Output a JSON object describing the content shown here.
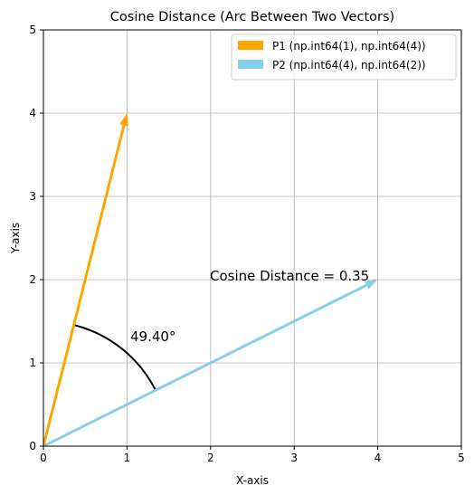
{
  "chart_data": {
    "type": "line",
    "title": "Cosine Distance (Arc Between Two Vectors)",
    "xlabel": "X-axis",
    "ylabel": "Y-axis",
    "xlim": [
      0,
      5
    ],
    "ylim": [
      0,
      5
    ],
    "xticks": [
      "0",
      "1",
      "2",
      "3",
      "4",
      "5"
    ],
    "yticks": [
      "0",
      "1",
      "2",
      "3",
      "4",
      "5"
    ],
    "grid": true,
    "legend_position": "top-right",
    "series": [
      {
        "name": "P1 (np.int64(1), np.int64(4))",
        "x": [
          0,
          1
        ],
        "y": [
          0,
          4
        ],
        "color": "#ffa500"
      },
      {
        "name": "P2 (np.int64(4), np.int64(2))",
        "x": [
          0,
          4
        ],
        "y": [
          0,
          2
        ],
        "color": "#87ceeb"
      }
    ],
    "angle_label": "49.40°",
    "distance_label": "Cosine Distance = 0.35"
  }
}
